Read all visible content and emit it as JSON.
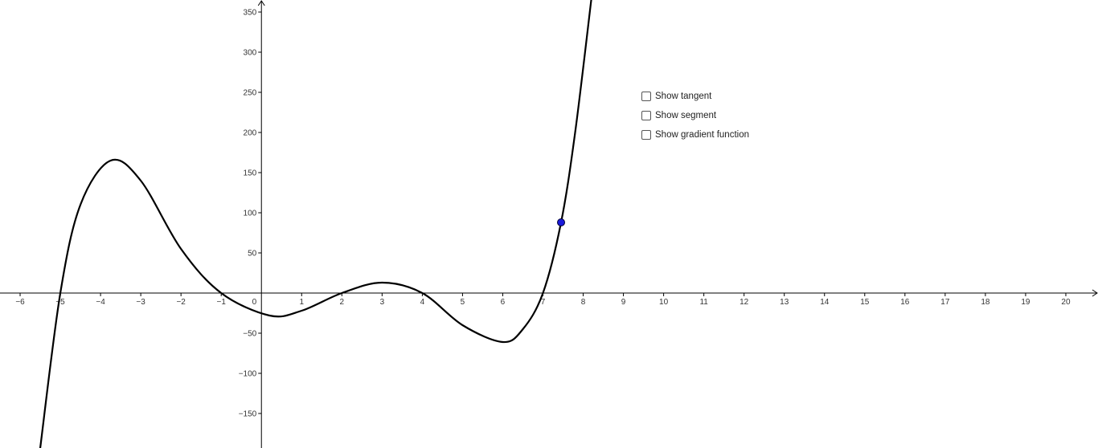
{
  "graph": {
    "x_axis": {
      "min": -6.5,
      "max": 20.8,
      "ticks": [
        -6,
        -5,
        -4,
        -3,
        -2,
        -1,
        1,
        2,
        3,
        4,
        5,
        6,
        7,
        8,
        9,
        10,
        11,
        12,
        13,
        14,
        15,
        16,
        17,
        18,
        19,
        20
      ],
      "tick_labels": [
        "−6",
        "−5",
        "−4",
        "−3",
        "−2",
        "−1",
        "1",
        "2",
        "3",
        "4",
        "5",
        "6",
        "7",
        "8",
        "9",
        "10",
        "11",
        "12",
        "13",
        "14",
        "15",
        "16",
        "17",
        "18",
        "19",
        "20"
      ],
      "origin_label": "0"
    },
    "y_axis": {
      "min": -193,
      "max": 365,
      "ticks": [
        -150,
        -100,
        -50,
        50,
        100,
        150,
        200,
        250,
        300,
        350
      ],
      "tick_labels": [
        "−150",
        "−100",
        "−50",
        "50",
        "100",
        "150",
        "200",
        "250",
        "300",
        "350"
      ]
    },
    "curve_samples": [
      [
        -5.5,
        -193
      ],
      [
        -5.0,
        0
      ],
      [
        -4.5,
        110
      ],
      [
        -3.75,
        165
      ],
      [
        -3.0,
        140
      ],
      [
        -2.0,
        55
      ],
      [
        -1.0,
        0
      ],
      [
        0.2,
        -28
      ],
      [
        1.0,
        -22
      ],
      [
        2.0,
        0
      ],
      [
        3.0,
        13
      ],
      [
        4.0,
        0
      ],
      [
        5.0,
        -40
      ],
      [
        6.0,
        -61
      ],
      [
        6.5,
        -45
      ],
      [
        7.0,
        0
      ],
      [
        7.45,
        88
      ],
      [
        7.8,
        200
      ],
      [
        8.2,
        365
      ]
    ],
    "point": {
      "x": 7.45,
      "y": 88,
      "color": "#1a1adb"
    },
    "curve_color": "#000000",
    "grid": false
  },
  "controls": [
    {
      "label": "Show tangent",
      "checked": false
    },
    {
      "label": "Show segment",
      "checked": false
    },
    {
      "label": "Show gradient function",
      "checked": false
    }
  ]
}
